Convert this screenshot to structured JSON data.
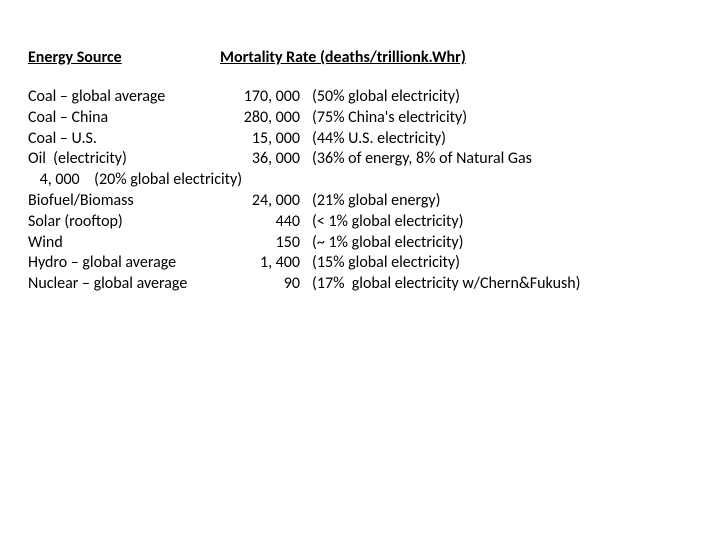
{
  "header": {
    "col1": "Energy Source",
    "col2": "Mortality Rate (deaths/trillionk.Whr)"
  },
  "rows": [
    {
      "source": "Coal – global average",
      "rate": "170, 000",
      "note": "(50% global electricity)"
    },
    {
      "source": "Coal – China",
      "rate": "280, 000",
      "note": "(75% China's electricity)"
    },
    {
      "source": "Coal – U.S.",
      "rate": "15, 000",
      "note": "(44% U.S. electricity)"
    },
    {
      "source": "Oil  (electricity)",
      "rate": "36, 000",
      "note": "(36% of energy, 8% of Natural Gas"
    }
  ],
  "natgas_line": " 4, 000    (20% global electricity)",
  "rows2": [
    {
      "source": "Biofuel/Biomass",
      "rate": "24, 000",
      "note": "(21% global energy)"
    },
    {
      "source": "Solar (rooftop)",
      "rate": "440",
      "note": "(< 1% global electricity)"
    },
    {
      "source": "Wind",
      "rate": "150",
      "note": "(~ 1% global electricity)"
    },
    {
      "source": "Hydro – global average",
      "rate": "1, 400",
      "note": "(15% global electricity)"
    },
    {
      "source": "Nuclear – global average",
      "rate": "90",
      "note": "(17%  global electricity w/Chern&Fukush)"
    }
  ]
}
